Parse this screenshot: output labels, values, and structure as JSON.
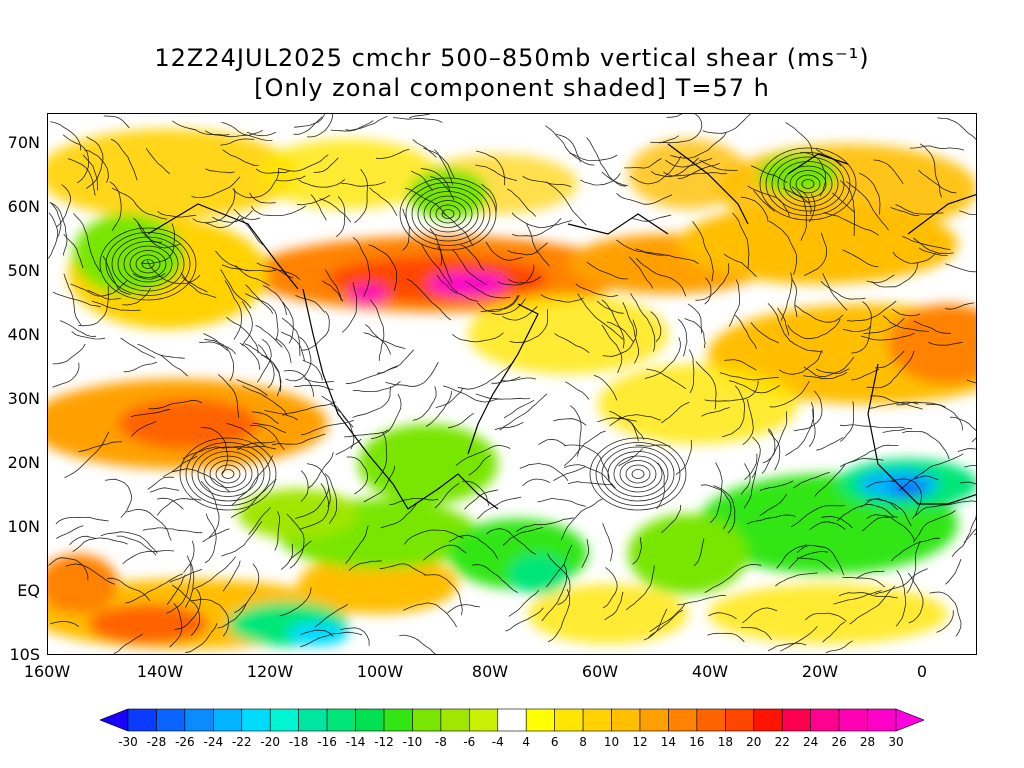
{
  "title_line1": "12Z24JUL2025 cmchr 500–850mb vertical shear (ms⁻¹)",
  "title_line2": "[Only zonal component shaded] T=57 h",
  "lat_labels": [
    "70N",
    "60N",
    "50N",
    "40N",
    "30N",
    "20N",
    "10N",
    "EQ",
    "10S"
  ],
  "lon_labels": [
    "160W",
    "140W",
    "120W",
    "100W",
    "80W",
    "60W",
    "40W",
    "20W",
    "0"
  ],
  "colorbar": {
    "labels": [
      "-30",
      "-28",
      "-26",
      "-24",
      "-22",
      "-20",
      "-18",
      "-16",
      "-14",
      "-12",
      "-10",
      "-8",
      "-6",
      "-4",
      "4",
      "6",
      "8",
      "10",
      "12",
      "14",
      "16",
      "18",
      "20",
      "22",
      "24",
      "26",
      "28",
      "30"
    ],
    "colors": [
      "#1a00ff",
      "#0a3cff",
      "#0a64ff",
      "#0a8cff",
      "#00b4ff",
      "#00dcff",
      "#00f5d2",
      "#00e6a0",
      "#00e678",
      "#00e050",
      "#32e614",
      "#78e600",
      "#a0e600",
      "#c8f000",
      "#ffffff",
      "#ffff00",
      "#ffe600",
      "#ffd200",
      "#ffbe00",
      "#ffa000",
      "#ff8200",
      "#ff6400",
      "#ff4600",
      "#ff1400",
      "#ff0050",
      "#ff0090",
      "#ff00b4",
      "#ff00c8",
      "#ff00e0"
    ]
  },
  "colors": {
    "streamline": "#000000",
    "background": "#ffffff"
  }
}
